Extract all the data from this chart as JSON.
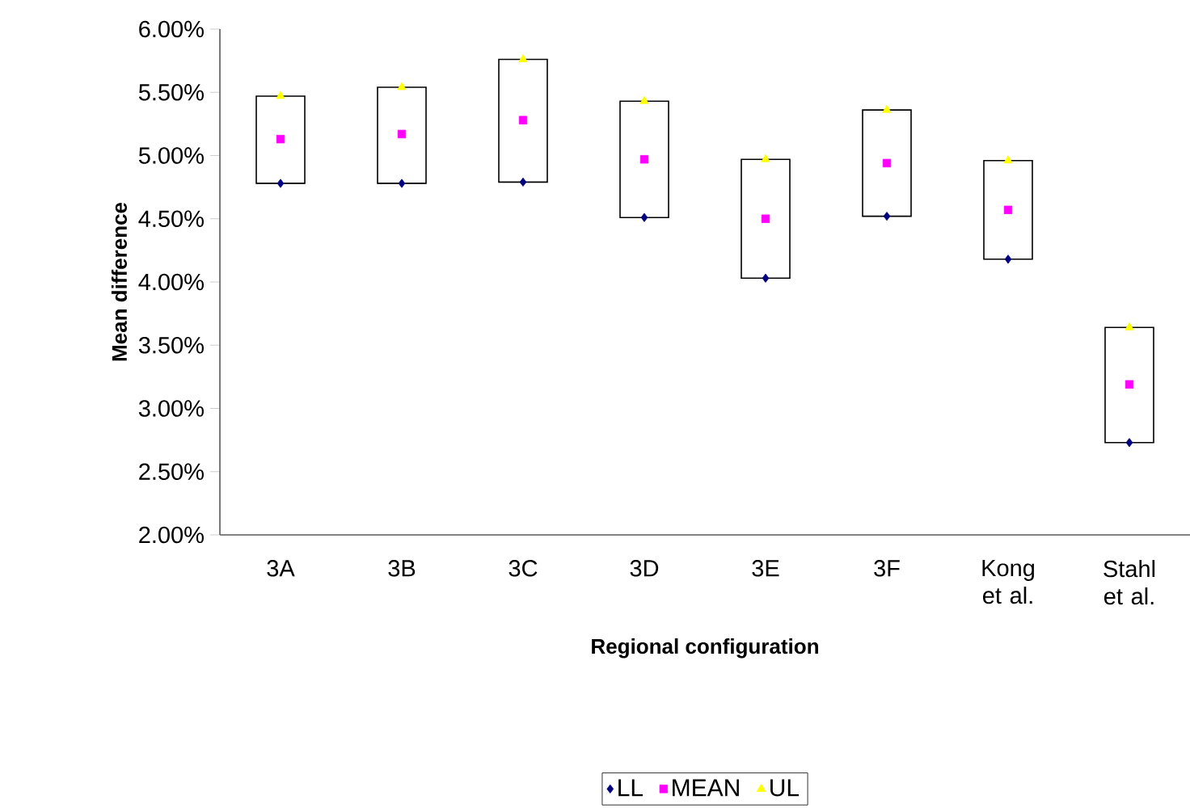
{
  "chart_data": {
    "type": "scatter",
    "xlabel": "Regional configuration",
    "ylabel": "Mean difference",
    "categories": [
      "3A",
      "3B",
      "3C",
      "3D",
      "3E",
      "3F",
      "Kong et al.",
      "Stahl et al."
    ],
    "ylim": [
      0.02,
      0.06
    ],
    "yticks": [
      {
        "value": 0.02,
        "label": "2.00%"
      },
      {
        "value": 0.025,
        "label": "2.50%"
      },
      {
        "value": 0.03,
        "label": "3.00%"
      },
      {
        "value": 0.035,
        "label": "3.50%"
      },
      {
        "value": 0.04,
        "label": "4.00%"
      },
      {
        "value": 0.045,
        "label": "4.50%"
      },
      {
        "value": 0.05,
        "label": "5.00%"
      },
      {
        "value": 0.055,
        "label": "5.50%"
      },
      {
        "value": 0.06,
        "label": "6.00%"
      }
    ],
    "grid": false,
    "legend": "bottom",
    "series": [
      {
        "type": "bar",
        "color": "#ffffff",
        "base": [
          0.0478,
          0.0478,
          0.0479,
          0.0451,
          0.0403,
          0.0452,
          0.0418,
          0.0273
        ],
        "values": [
          0.0069,
          0.0076,
          0.0097,
          0.0092,
          0.0094,
          0.0084,
          0.0078,
          0.0091
        ]
      },
      {
        "name": "LL",
        "marker": "diamond",
        "color": "#000080",
        "values": [
          0.0478,
          0.0478,
          0.0479,
          0.0451,
          0.0403,
          0.0452,
          0.0418,
          0.0273
        ]
      },
      {
        "name": "MEAN",
        "marker": "square",
        "color": "#ff00ff",
        "values": [
          0.0513,
          0.0517,
          0.0528,
          0.0497,
          0.045,
          0.0494,
          0.0457,
          0.0319
        ]
      },
      {
        "name": "UL",
        "marker": "triangle",
        "color": "#ffff00",
        "values": [
          0.0547,
          0.0554,
          0.0576,
          0.0543,
          0.0497,
          0.0536,
          0.0496,
          0.0364
        ]
      }
    ]
  }
}
